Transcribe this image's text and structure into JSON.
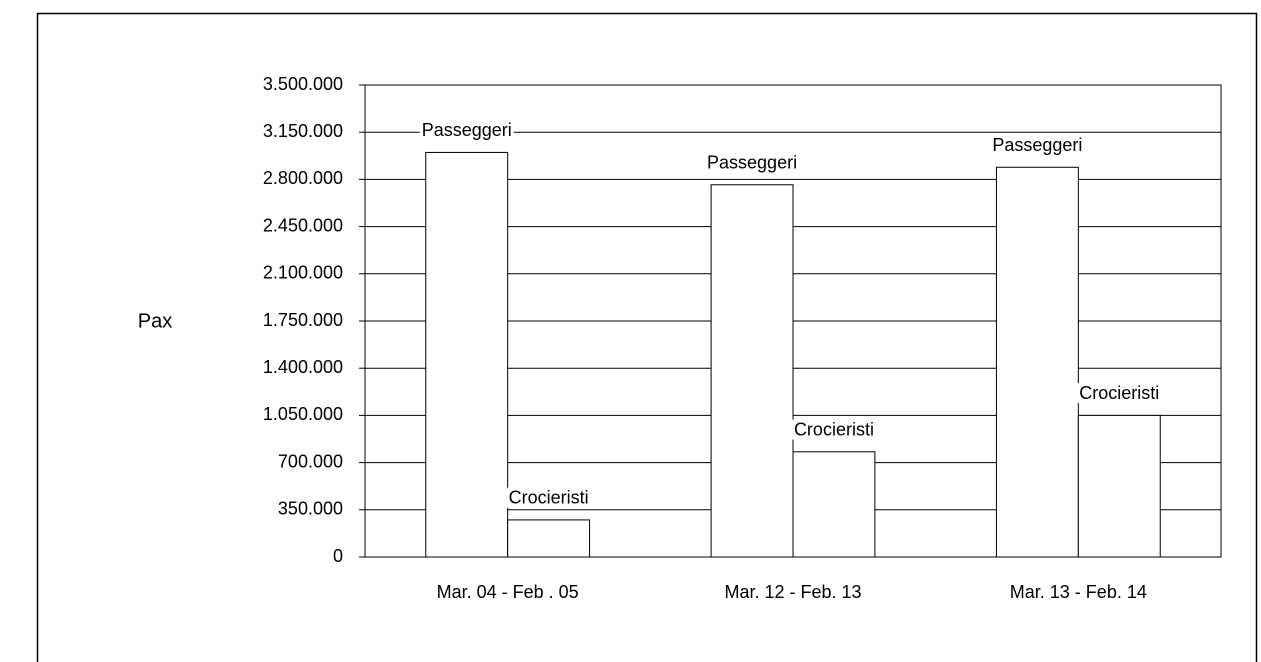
{
  "chart_data": {
    "type": "bar",
    "y_label": "Pax",
    "categories": [
      "Mar. 04 - Feb . 05",
      "Mar. 12 - Feb. 13",
      "Mar. 13 - Feb. 14"
    ],
    "series": [
      {
        "name": "Passeggeri",
        "color": "#ffffff",
        "values": [
          3000000,
          2760000,
          2890000
        ]
      },
      {
        "name": "Crocieristi",
        "color": "#ffffff",
        "values": [
          275000,
          780000,
          1050000
        ]
      }
    ],
    "ylim": [
      0,
      3500000
    ],
    "yticks": [
      0,
      {
        "value": 350000,
        "label": "350.000"
      },
      {
        "value": 700000,
        "label": "700.000"
      },
      {
        "value": 1050000,
        "label": "1.050.000"
      },
      {
        "value": 1400000,
        "label": "1.400.000"
      },
      {
        "value": 1750000,
        "label": "1.750.000"
      },
      {
        "value": 2100000,
        "label": "2.100.000"
      },
      {
        "value": 2450000,
        "label": "2.450.000"
      },
      {
        "value": 2800000,
        "label": "2.800.000"
      },
      {
        "value": 3150000,
        "label": "3.150.000"
      },
      {
        "value": 3500000,
        "label": "3.500.000"
      }
    ],
    "grid": true
  }
}
